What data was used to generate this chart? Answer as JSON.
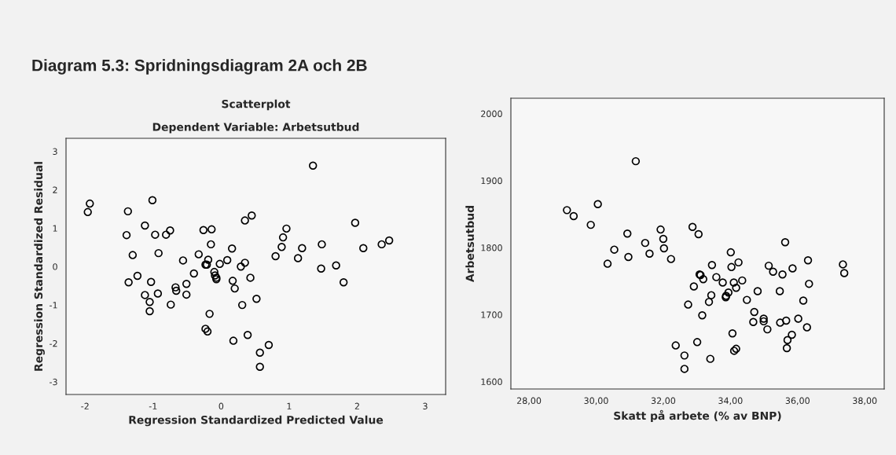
{
  "chart_data": [
    {
      "type": "scatter",
      "title": "Scatterplot",
      "subtitle": "Dependent Variable: Arbetsutbud",
      "xlabel": "Regression Standardized Predicted Value",
      "ylabel": "Regression Standardized Residual",
      "annotations": [
        "Diagram 5.3: Spridningsdiagram 2A och 2B"
      ],
      "marker": "circle",
      "grid": false,
      "legend": false,
      "xlim": [
        -2.28,
        3.3
      ],
      "ylim": [
        -3.33,
        3.34
      ],
      "xticks": [
        {
          "value": -2,
          "label": "-2"
        },
        {
          "value": -1,
          "label": "-1"
        },
        0,
        1,
        2,
        3
      ],
      "yticks": [
        {
          "value": -3,
          "label": "-3"
        },
        {
          "value": -2,
          "label": "-2"
        },
        {
          "value": -1,
          "label": "-1"
        },
        0,
        1,
        2,
        3
      ],
      "series": [
        {
          "color": "#000000",
          "x": [
            -1.93,
            -1.96,
            -1.37,
            -1.39,
            -1.3,
            -1.36,
            -1.23,
            -1.12,
            -1.01,
            -0.97,
            -0.92,
            -1.03,
            -0.93,
            -1.12,
            -1.05,
            -1.05,
            -0.81,
            -0.75,
            -0.74,
            -0.67,
            -0.66,
            -0.56,
            -0.51,
            -0.51,
            -0.4,
            -0.33,
            -0.26,
            -0.23,
            -0.21,
            -0.19,
            -0.15,
            -0.14,
            -0.1,
            -0.09,
            -0.07,
            -0.07,
            -0.17,
            -0.23,
            -0.2,
            -0.02,
            0.09,
            0.16,
            0.17,
            0.2,
            0.18,
            0.29,
            0.35,
            0.31,
            0.39,
            0.43,
            0.35,
            0.45,
            1.35,
            0.96,
            0.91,
            0.89,
            1.19,
            0.8,
            1.13,
            1.48,
            1.97,
            2.09,
            2.36,
            2.47,
            1.47,
            1.69,
            1.8,
            0.52,
            0.7,
            0.57,
            0.57
          ],
          "values": [
            1.64,
            1.42,
            1.44,
            0.82,
            0.3,
            -0.41,
            -0.24,
            1.07,
            1.73,
            0.83,
            0.35,
            -0.4,
            -0.7,
            -0.74,
            -0.92,
            -1.16,
            0.83,
            0.94,
            -0.99,
            -0.54,
            -0.63,
            0.16,
            -0.45,
            -0.73,
            -0.18,
            0.32,
            0.95,
            0.05,
            0.05,
            0.18,
            0.58,
            0.97,
            -0.14,
            -0.23,
            -0.29,
            -0.33,
            -1.23,
            -1.62,
            -1.69,
            0.07,
            0.17,
            0.47,
            -0.37,
            -0.57,
            -1.93,
            0.0,
            0.1,
            -1.0,
            -1.78,
            -0.29,
            1.2,
            1.33,
            2.63,
            0.99,
            0.76,
            0.51,
            0.48,
            0.27,
            0.22,
            0.58,
            1.14,
            0.48,
            0.58,
            0.68,
            -0.05,
            0.03,
            -0.41,
            -0.84,
            -2.04,
            -2.24,
            -2.61
          ]
        }
      ]
    },
    {
      "type": "scatter",
      "xlabel": "Skatt på arbete (% av BNP)",
      "ylabel": "Arbetsutbud",
      "marker": "circle",
      "grid": false,
      "legend": false,
      "xlim": [
        27.46,
        38.58
      ],
      "ylim": [
        1589,
        2023
      ],
      "xticks": [
        {
          "value": 28,
          "label": "28,00"
        },
        {
          "value": 30,
          "label": "30,00"
        },
        {
          "value": 32,
          "label": "32,00"
        },
        {
          "value": 34,
          "label": "34,00"
        },
        {
          "value": 36,
          "label": "36,00"
        },
        {
          "value": 38,
          "label": "38,00"
        }
      ],
      "yticks": [
        1600,
        1700,
        1800,
        1900,
        2000
      ],
      "series": [
        {
          "color": "#000000",
          "x": [
            29.13,
            29.33,
            29.84,
            30.05,
            30.34,
            30.54,
            30.93,
            30.96,
            31.18,
            31.46,
            31.59,
            31.92,
            32.0,
            32.02,
            32.23,
            32.87,
            33.05,
            34.01,
            34.24,
            33.45,
            34.03,
            33.08,
            33.11,
            33.19,
            33.58,
            33.77,
            34.1,
            34.35,
            34.17,
            32.91,
            33.43,
            33.36,
            33.86,
            33.94,
            33.87,
            34.49,
            34.81,
            32.74,
            33.16,
            34.71,
            34.68,
            34.99,
            34.99,
            35.1,
            35.14,
            35.27,
            35.55,
            35.47,
            35.63,
            35.85,
            36.31,
            36.34,
            36.17,
            35.48,
            35.66,
            36.02,
            36.28,
            35.83,
            35.7,
            35.68,
            34.06,
            33.01,
            32.37,
            32.63,
            32.63,
            33.4,
            34.11,
            34.17,
            37.35,
            37.39
          ],
          "values": [
            1856,
            1847,
            1834,
            1865,
            1776,
            1797,
            1821,
            1786,
            1929,
            1807,
            1791,
            1827,
            1813,
            1799,
            1783,
            1831,
            1820,
            1793,
            1778,
            1774,
            1771,
            1760,
            1759,
            1753,
            1756,
            1748,
            1748,
            1751,
            1740,
            1742,
            1729,
            1719,
            1726,
            1733,
            1728,
            1722,
            1735,
            1715,
            1699,
            1704,
            1689,
            1694,
            1690,
            1678,
            1773,
            1764,
            1760,
            1735,
            1808,
            1769,
            1781,
            1746,
            1721,
            1688,
            1691,
            1694,
            1681,
            1670,
            1662,
            1650,
            1672,
            1659,
            1654,
            1639,
            1619,
            1634,
            1646,
            1649,
            1775,
            1762
          ]
        }
      ]
    }
  ]
}
